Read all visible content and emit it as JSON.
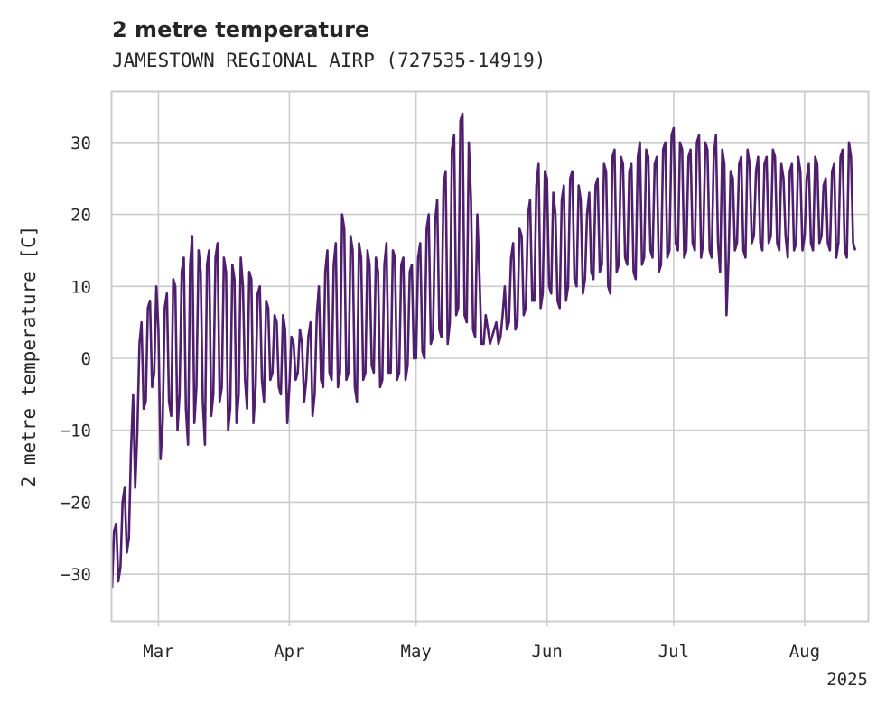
{
  "chart_data": {
    "type": "line",
    "title": "2 metre temperature",
    "subtitle": "JAMESTOWN REGIONAL AIRP (727535-14919)",
    "ylabel": "2 metre temperature [C]",
    "xlabel": "",
    "x_year_label": "2025",
    "xlim": [
      "2025-02-18",
      "2025-08-16"
    ],
    "ylim": [
      -36.5,
      37
    ],
    "yticks": [
      -30,
      -20,
      -10,
      0,
      10,
      20,
      30
    ],
    "ytick_labels": [
      "−30",
      "−20",
      "−10",
      "0",
      "10",
      "20",
      "30"
    ],
    "xticks": [
      "2025-03-01",
      "2025-04-01",
      "2025-05-01",
      "2025-06-01",
      "2025-07-01",
      "2025-08-01"
    ],
    "xtick_labels": [
      "Mar",
      "Apr",
      "May",
      "Jun",
      "Jul",
      "Aug"
    ],
    "grid": true,
    "legend": "none",
    "series": [
      {
        "color": "#4f1f6e",
        "x": [
          "2025-02-18",
          "2025-02-19",
          "2025-02-20",
          "2025-02-21",
          "2025-02-22",
          "2025-02-23",
          "2025-02-24",
          "2025-02-25",
          "2025-02-26",
          "2025-02-27",
          "2025-02-28",
          "2025-03-01",
          "2025-03-02",
          "2025-03-03",
          "2025-03-04",
          "2025-03-05",
          "2025-03-06",
          "2025-03-07",
          "2025-03-08",
          "2025-03-09",
          "2025-03-10",
          "2025-03-11",
          "2025-03-12",
          "2025-03-13",
          "2025-03-14",
          "2025-03-15",
          "2025-03-16",
          "2025-03-17",
          "2025-03-18",
          "2025-03-19",
          "2025-03-20",
          "2025-03-21",
          "2025-03-22",
          "2025-03-23",
          "2025-03-24",
          "2025-03-25",
          "2025-03-26",
          "2025-03-27",
          "2025-03-28",
          "2025-03-29",
          "2025-03-30",
          "2025-03-31",
          "2025-04-01",
          "2025-04-02",
          "2025-04-03",
          "2025-04-04",
          "2025-04-05",
          "2025-04-06",
          "2025-04-07",
          "2025-04-08",
          "2025-04-09",
          "2025-04-10",
          "2025-04-11",
          "2025-04-12",
          "2025-04-13",
          "2025-04-14",
          "2025-04-15",
          "2025-04-16",
          "2025-04-17",
          "2025-04-18",
          "2025-04-19",
          "2025-04-20",
          "2025-04-21",
          "2025-04-22",
          "2025-04-23",
          "2025-04-24",
          "2025-04-25",
          "2025-04-26",
          "2025-04-27",
          "2025-04-28",
          "2025-04-29",
          "2025-04-30",
          "2025-05-01",
          "2025-05-02",
          "2025-05-03",
          "2025-05-04",
          "2025-05-05",
          "2025-05-06",
          "2025-05-07",
          "2025-05-08",
          "2025-05-09",
          "2025-05-10",
          "2025-05-11",
          "2025-05-12",
          "2025-05-13",
          "2025-05-14",
          "2025-05-15",
          "2025-05-16",
          "2025-05-17",
          "2025-05-18",
          "2025-05-19",
          "2025-05-20",
          "2025-05-21",
          "2025-05-22",
          "2025-05-23",
          "2025-05-24",
          "2025-05-25",
          "2025-05-26",
          "2025-05-27",
          "2025-05-28",
          "2025-05-29",
          "2025-05-30",
          "2025-05-31",
          "2025-06-01",
          "2025-06-02",
          "2025-06-03",
          "2025-06-04",
          "2025-06-05",
          "2025-06-06",
          "2025-06-07",
          "2025-06-08",
          "2025-06-09",
          "2025-06-10",
          "2025-06-11",
          "2025-06-12",
          "2025-06-13",
          "2025-06-14",
          "2025-06-15",
          "2025-06-16",
          "2025-06-17",
          "2025-06-18",
          "2025-06-19",
          "2025-06-20",
          "2025-06-21",
          "2025-06-22",
          "2025-06-23",
          "2025-06-24",
          "2025-06-25",
          "2025-06-26",
          "2025-06-27",
          "2025-06-28",
          "2025-06-29",
          "2025-06-30",
          "2025-07-01",
          "2025-07-02",
          "2025-07-03",
          "2025-07-04",
          "2025-07-05",
          "2025-07-06",
          "2025-07-07",
          "2025-07-08",
          "2025-07-09",
          "2025-07-10",
          "2025-07-11",
          "2025-07-12",
          "2025-07-13",
          "2025-07-14",
          "2025-07-15",
          "2025-07-16",
          "2025-07-17",
          "2025-07-18",
          "2025-07-19",
          "2025-07-20",
          "2025-07-21",
          "2025-07-22",
          "2025-07-23",
          "2025-07-24",
          "2025-07-25",
          "2025-07-26",
          "2025-07-27",
          "2025-07-28",
          "2025-07-29",
          "2025-07-30",
          "2025-07-31",
          "2025-08-01",
          "2025-08-02",
          "2025-08-03",
          "2025-08-04",
          "2025-08-05",
          "2025-08-06",
          "2025-08-07",
          "2025-08-08",
          "2025-08-09",
          "2025-08-10",
          "2025-08-11",
          "2025-08-12",
          "2025-08-13",
          "2025-08-14",
          "2025-08-15",
          "2025-08-16"
        ],
        "y_min": [
          -32,
          -31,
          -29,
          -27,
          -25,
          -18,
          -10,
          -7,
          -6,
          -4,
          -2,
          -14,
          -9,
          -6,
          -8,
          -10,
          -5,
          -7,
          -12,
          -9,
          -4,
          -6,
          -12,
          -8,
          -5,
          -6,
          -4,
          -10,
          -7,
          -9,
          -5,
          -3,
          -7,
          -9,
          -4,
          -3,
          -6,
          -3,
          -2,
          -4,
          -5,
          -9,
          -4,
          -3,
          -2,
          -6,
          -3,
          -8,
          -5,
          -3,
          -4,
          -2,
          -3,
          -4,
          -2,
          -3,
          -2,
          -4,
          -6,
          -3,
          -2,
          -1,
          -2,
          -4,
          -3,
          -2,
          -2,
          -3,
          -2,
          -3,
          -1,
          0,
          0,
          1,
          0,
          2,
          3,
          4,
          3,
          2,
          5,
          6,
          7,
          6,
          5,
          4,
          3,
          2,
          2,
          2,
          3,
          2,
          3,
          4,
          5,
          4,
          5,
          6,
          7,
          8,
          8,
          7,
          9,
          10,
          9,
          8,
          7,
          8,
          10,
          11,
          10,
          9,
          11,
          12,
          11,
          12,
          13,
          10,
          9,
          12,
          13,
          14,
          13,
          12,
          11,
          13,
          14,
          15,
          14,
          12,
          13,
          14,
          15,
          16,
          15,
          14,
          15,
          16,
          15,
          14,
          16,
          15,
          14,
          16,
          12,
          6,
          14,
          15,
          16,
          15,
          14,
          16,
          17,
          16,
          15,
          16,
          17,
          16,
          15,
          17,
          14,
          15,
          16,
          15,
          17,
          16,
          15,
          16,
          17,
          16,
          15,
          14,
          16,
          15,
          14,
          16,
          15,
          14
        ],
        "y_max": [
          -24,
          -23,
          -20,
          -18,
          -13,
          -5,
          2,
          5,
          7,
          8,
          10,
          4,
          7,
          9,
          11,
          10,
          12,
          14,
          13,
          17,
          15,
          12,
          13,
          15,
          14,
          16,
          14,
          12,
          13,
          11,
          14,
          10,
          12,
          11,
          9,
          10,
          8,
          7,
          6,
          5,
          6,
          4,
          3,
          2,
          4,
          2,
          3,
          5,
          6,
          10,
          12,
          15,
          13,
          16,
          20,
          18,
          17,
          15,
          16,
          14,
          15,
          13,
          14,
          12,
          13,
          16,
          15,
          14,
          13,
          14,
          12,
          13,
          14,
          16,
          18,
          20,
          19,
          22,
          24,
          26,
          29,
          31,
          33,
          34,
          30,
          22,
          20,
          12,
          6,
          4,
          4,
          5,
          6,
          10,
          14,
          16,
          18,
          17,
          20,
          22,
          24,
          27,
          26,
          25,
          23,
          20,
          22,
          24,
          25,
          26,
          24,
          22,
          20,
          23,
          24,
          25,
          27,
          26,
          28,
          29,
          28,
          27,
          26,
          27,
          28,
          30,
          29,
          28,
          27,
          28,
          29,
          30,
          31,
          32,
          30,
          29,
          28,
          29,
          30,
          31,
          30,
          29,
          28,
          31,
          29,
          27,
          26,
          25,
          27,
          28,
          29,
          27,
          26,
          28,
          27,
          28,
          29,
          28,
          27,
          25,
          26,
          27,
          28,
          26,
          25,
          27,
          28,
          27,
          24,
          25,
          26,
          27,
          28,
          29,
          30,
          28
        ]
      }
    ]
  }
}
